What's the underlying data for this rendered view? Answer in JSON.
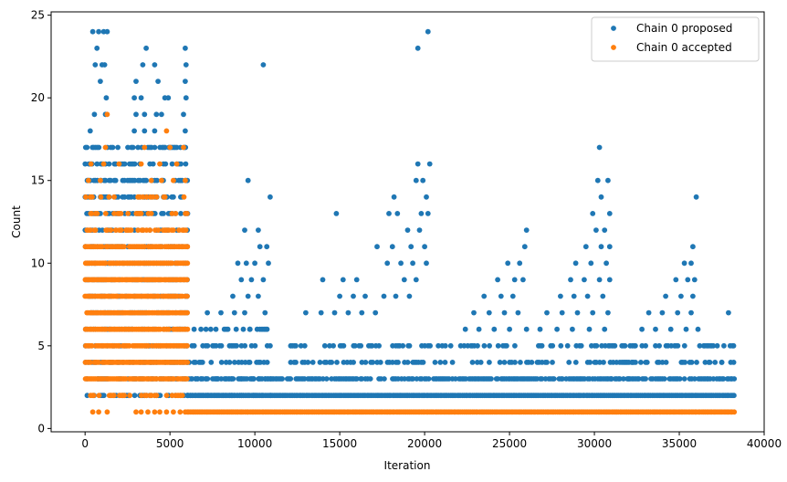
{
  "chart_data": {
    "type": "scatter",
    "xlabel": "Iteration",
    "ylabel": "Count",
    "xlim": [
      -2000,
      40000
    ],
    "ylim": [
      -0.2,
      25.2
    ],
    "xticks": [
      0,
      5000,
      10000,
      15000,
      20000,
      25000,
      30000,
      35000,
      40000
    ],
    "yticks": [
      0,
      5,
      10,
      15,
      20,
      25
    ],
    "grid": false,
    "legend_position": "top-right",
    "series": [
      {
        "name": "Chain 0 proposed",
        "color": "#1f77b4",
        "marker": "circle",
        "regions": [
          {
            "x0": 0,
            "x1": 6000,
            "levels": [
              2,
              3,
              4,
              5,
              6,
              7,
              8,
              9,
              10,
              11,
              12,
              13,
              14,
              15,
              16,
              17
            ],
            "density": 0.55
          },
          {
            "x0": 6000,
            "x1": 11000,
            "levels": [
              2,
              3,
              4,
              5,
              6
            ],
            "density": 0.4
          },
          {
            "x0": 6000,
            "x1": 38200,
            "levels": [
              2
            ],
            "density": 1.0
          },
          {
            "x0": 6100,
            "x1": 38200,
            "levels": [
              3
            ],
            "density": 0.75
          },
          {
            "x0": 12000,
            "x1": 38200,
            "levels": [
              4,
              5
            ],
            "density": 0.35
          }
        ],
        "points": [
          [
            450,
            24
          ],
          [
            800,
            24
          ],
          [
            1100,
            24
          ],
          [
            1300,
            24
          ],
          [
            700,
            23
          ],
          [
            1000,
            22
          ],
          [
            1150,
            22
          ],
          [
            600,
            22
          ],
          [
            900,
            21
          ],
          [
            1250,
            20
          ],
          [
            300,
            18
          ],
          [
            550,
            19
          ],
          [
            1200,
            19
          ],
          [
            3600,
            23
          ],
          [
            3400,
            22
          ],
          [
            4100,
            22
          ],
          [
            3000,
            21
          ],
          [
            4300,
            21
          ],
          [
            2900,
            20
          ],
          [
            3300,
            20
          ],
          [
            5900,
            23
          ],
          [
            5950,
            22
          ],
          [
            5900,
            21
          ],
          [
            5950,
            20
          ],
          [
            4900,
            20
          ],
          [
            4700,
            20
          ],
          [
            4500,
            19
          ],
          [
            4200,
            19
          ],
          [
            3500,
            19
          ],
          [
            3000,
            19
          ],
          [
            5800,
            19
          ],
          [
            5900,
            18
          ],
          [
            3500,
            18
          ],
          [
            4100,
            18
          ],
          [
            2900,
            18
          ],
          [
            10500,
            22
          ],
          [
            9600,
            15
          ],
          [
            9400,
            12
          ],
          [
            10200,
            12
          ],
          [
            10900,
            14
          ],
          [
            10300,
            11
          ],
          [
            10700,
            11
          ],
          [
            9000,
            10
          ],
          [
            9500,
            10
          ],
          [
            10000,
            10
          ],
          [
            10800,
            10
          ],
          [
            9200,
            9
          ],
          [
            9800,
            9
          ],
          [
            10500,
            9
          ],
          [
            8700,
            8
          ],
          [
            9600,
            8
          ],
          [
            10200,
            8
          ],
          [
            8000,
            7
          ],
          [
            8800,
            7
          ],
          [
            9400,
            7
          ],
          [
            10600,
            7
          ],
          [
            7200,
            7
          ],
          [
            7400,
            6
          ],
          [
            8200,
            6
          ],
          [
            8900,
            6
          ],
          [
            9700,
            6
          ],
          [
            10300,
            6
          ],
          [
            14800,
            13
          ],
          [
            14000,
            9
          ],
          [
            15200,
            9
          ],
          [
            16000,
            9
          ],
          [
            15000,
            8
          ],
          [
            15800,
            8
          ],
          [
            16500,
            8
          ],
          [
            13000,
            7
          ],
          [
            13900,
            7
          ],
          [
            14700,
            7
          ],
          [
            15500,
            7
          ],
          [
            16300,
            7
          ],
          [
            17100,
            7
          ],
          [
            18200,
            14
          ],
          [
            17900,
            13
          ],
          [
            18400,
            13
          ],
          [
            19000,
            12
          ],
          [
            17200,
            11
          ],
          [
            18100,
            11
          ],
          [
            19200,
            11
          ],
          [
            17800,
            10
          ],
          [
            18600,
            10
          ],
          [
            19600,
            23
          ],
          [
            20200,
            24
          ],
          [
            19600,
            16
          ],
          [
            20300,
            16
          ],
          [
            19500,
            15
          ],
          [
            19900,
            15
          ],
          [
            20100,
            14
          ],
          [
            19800,
            13
          ],
          [
            20200,
            13
          ],
          [
            19700,
            12
          ],
          [
            20000,
            11
          ],
          [
            19300,
            10
          ],
          [
            20100,
            10
          ],
          [
            18800,
            9
          ],
          [
            19500,
            9
          ],
          [
            17600,
            8
          ],
          [
            18300,
            8
          ],
          [
            19100,
            8
          ],
          [
            26000,
            12
          ],
          [
            25900,
            11
          ],
          [
            24900,
            10
          ],
          [
            25600,
            10
          ],
          [
            24300,
            9
          ],
          [
            25300,
            9
          ],
          [
            25800,
            9
          ],
          [
            23500,
            8
          ],
          [
            24500,
            8
          ],
          [
            25200,
            8
          ],
          [
            22900,
            7
          ],
          [
            23800,
            7
          ],
          [
            24700,
            7
          ],
          [
            25500,
            7
          ],
          [
            22400,
            6
          ],
          [
            23200,
            6
          ],
          [
            24100,
            6
          ],
          [
            25000,
            6
          ],
          [
            26000,
            6
          ],
          [
            30300,
            17
          ],
          [
            30200,
            15
          ],
          [
            30800,
            15
          ],
          [
            30400,
            14
          ],
          [
            29900,
            13
          ],
          [
            30900,
            13
          ],
          [
            30600,
            12
          ],
          [
            30100,
            12
          ],
          [
            29500,
            11
          ],
          [
            30400,
            11
          ],
          [
            30900,
            11
          ],
          [
            28900,
            10
          ],
          [
            29800,
            10
          ],
          [
            30700,
            10
          ],
          [
            28600,
            9
          ],
          [
            29400,
            9
          ],
          [
            30300,
            9
          ],
          [
            30900,
            9
          ],
          [
            28000,
            8
          ],
          [
            28800,
            8
          ],
          [
            29600,
            8
          ],
          [
            30500,
            8
          ],
          [
            27200,
            7
          ],
          [
            28100,
            7
          ],
          [
            29000,
            7
          ],
          [
            29900,
            7
          ],
          [
            30800,
            7
          ],
          [
            26800,
            6
          ],
          [
            27800,
            6
          ],
          [
            28700,
            6
          ],
          [
            29700,
            6
          ],
          [
            30600,
            6
          ],
          [
            36000,
            14
          ],
          [
            35800,
            11
          ],
          [
            35300,
            10
          ],
          [
            35700,
            10
          ],
          [
            34800,
            9
          ],
          [
            35500,
            9
          ],
          [
            35900,
            9
          ],
          [
            34200,
            8
          ],
          [
            35100,
            8
          ],
          [
            35800,
            8
          ],
          [
            33200,
            7
          ],
          [
            34000,
            7
          ],
          [
            34900,
            7
          ],
          [
            35700,
            7
          ],
          [
            37900,
            7
          ],
          [
            32800,
            6
          ],
          [
            33600,
            6
          ],
          [
            34500,
            6
          ],
          [
            35400,
            6
          ],
          [
            36100,
            6
          ],
          [
            38200,
            5
          ],
          [
            38000,
            5
          ],
          [
            31800,
            5
          ],
          [
            36500,
            5
          ],
          [
            37000,
            5
          ],
          [
            36800,
            4
          ],
          [
            37500,
            4
          ],
          [
            31500,
            4
          ],
          [
            32200,
            4
          ],
          [
            32000,
            3
          ],
          [
            31000,
            3
          ]
        ]
      },
      {
        "name": "Chain 0 accepted",
        "color": "#ff7f0e",
        "marker": "circle",
        "regions": [
          {
            "x0": 0,
            "x1": 6000,
            "levels": [
              3,
              4,
              5,
              6,
              7,
              8,
              9,
              10,
              11
            ],
            "density": 0.95
          },
          {
            "x0": 0,
            "x1": 6000,
            "levels": [
              2
            ],
            "density": 0.5
          },
          {
            "x0": 0,
            "x1": 6000,
            "levels": [
              12
            ],
            "density": 0.55
          },
          {
            "x0": 0,
            "x1": 6000,
            "levels": [
              13,
              14
            ],
            "density": 0.3
          },
          {
            "x0": 6000,
            "x1": 38200,
            "levels": [
              1
            ],
            "density": 1.0
          }
        ],
        "points": [
          [
            1300,
            19
          ],
          [
            1200,
            17
          ],
          [
            3500,
            17
          ],
          [
            5000,
            17
          ],
          [
            5800,
            17
          ],
          [
            4800,
            18
          ],
          [
            350,
            16
          ],
          [
            1100,
            16
          ],
          [
            2000,
            16
          ],
          [
            3300,
            16
          ],
          [
            4400,
            16
          ],
          [
            5400,
            16
          ],
          [
            200,
            15
          ],
          [
            900,
            15
          ],
          [
            3900,
            15
          ],
          [
            4500,
            15
          ],
          [
            5200,
            15
          ],
          [
            5900,
            15
          ],
          [
            450,
            1
          ],
          [
            800,
            1
          ],
          [
            1300,
            1
          ],
          [
            3000,
            1
          ],
          [
            3300,
            1
          ],
          [
            3700,
            1
          ],
          [
            4100,
            1
          ],
          [
            4400,
            1
          ],
          [
            4800,
            1
          ],
          [
            5200,
            1
          ],
          [
            5600,
            1
          ],
          [
            5900,
            1
          ]
        ]
      }
    ]
  }
}
